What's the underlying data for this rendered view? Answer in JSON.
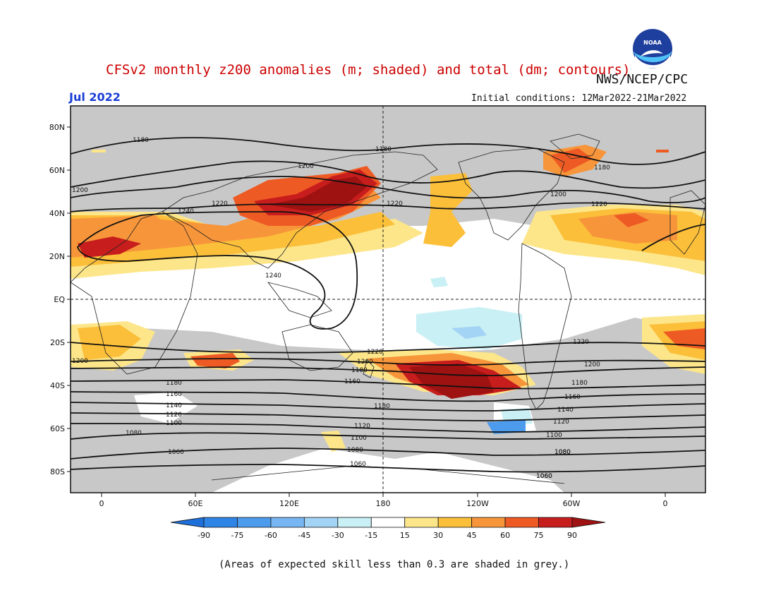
{
  "header": {
    "title": "CFSv2 monthly z200 anomalies (m; shaded) and total (dm; contours)",
    "agency": "NWS/NCEP/CPC",
    "month": "Jul 2022",
    "initial_conditions": "Initial conditions: 12Mar2022-21Mar2022"
  },
  "logo": {
    "text": "NOAA",
    "icon": "noaa-logo"
  },
  "axes": {
    "lat_labels": [
      "80N",
      "60N",
      "40N",
      "20N",
      "EQ",
      "20S",
      "40S",
      "60S",
      "80S"
    ],
    "lon_labels": [
      "0",
      "60E",
      "120E",
      "180",
      "120W",
      "60W",
      "0"
    ]
  },
  "contour_labels": [
    "1180",
    "1180",
    "1200",
    "1200",
    "1220",
    "1240",
    "1220",
    "1180",
    "1200",
    "1220",
    "1240",
    "1200",
    "1220",
    "1200",
    "1180",
    "1160",
    "1180",
    "1160",
    "1140",
    "1120",
    "1100",
    "1080",
    "1060",
    "1180",
    "1120",
    "1100",
    "1080",
    "1060",
    "1080",
    "1060",
    "1220",
    "1200",
    "1180",
    "1160",
    "1140",
    "1120",
    "1100",
    "1080",
    "1060"
  ],
  "colorbar": {
    "labels": [
      "-90",
      "-75",
      "-60",
      "-45",
      "-30",
      "-15",
      "15",
      "30",
      "45",
      "60",
      "75",
      "90"
    ],
    "colors": [
      "#1e6fd9",
      "#2f85e6",
      "#4d9bed",
      "#77b6f2",
      "#a3d3f5",
      "#c9f0f5",
      "#ffffff",
      "#fde68a",
      "#fbbf3a",
      "#f7953a",
      "#ee5a24",
      "#c81d1d",
      "#9e1212"
    ]
  },
  "footnote": "(Areas of expected skill less than 0.3 are shaded in grey.)"
}
